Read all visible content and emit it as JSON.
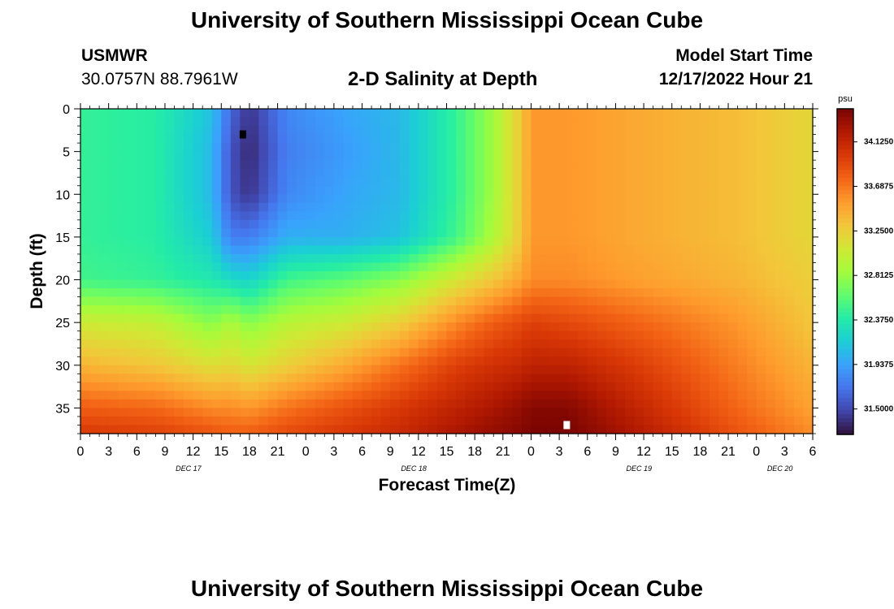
{
  "header": {
    "title": "University of Southern Mississippi Ocean Cube",
    "station": "USMWR",
    "coords": "30.0757N  88.7961W",
    "plot_title": "2-D Salinity at Depth",
    "model_label": "Model Start Time",
    "model_time": "12/17/2022 Hour 21"
  },
  "footer": {
    "title": "University of Southern Mississippi Ocean Cube"
  },
  "chart_data": {
    "type": "heatmap",
    "xlabel": "Forecast Time(Z)",
    "ylabel": "Depth (ft)",
    "x_ticks": [
      "0",
      "3",
      "6",
      "9",
      "12",
      "15",
      "18",
      "21",
      "0",
      "3",
      "6",
      "9",
      "12",
      "15",
      "18",
      "21",
      "0",
      "3",
      "6",
      "9",
      "12",
      "15",
      "18",
      "21",
      "0",
      "3",
      "6"
    ],
    "x_tick_hours": [
      0,
      3,
      6,
      9,
      12,
      15,
      18,
      21,
      24,
      27,
      30,
      33,
      36,
      39,
      42,
      45,
      48,
      51,
      54,
      57,
      60,
      63,
      66,
      69,
      72,
      75,
      78
    ],
    "xlim_hours": [
      0,
      78
    ],
    "date_labels": [
      {
        "label": "DEC 17",
        "hour": 11.5
      },
      {
        "label": "DEC 18",
        "hour": 35.5
      },
      {
        "label": "DEC 19",
        "hour": 59.5
      },
      {
        "label": "DEC 20",
        "hour": 74.5
      }
    ],
    "y_ticks": [
      0,
      5,
      10,
      15,
      20,
      25,
      30,
      35
    ],
    "ylim": [
      0,
      38
    ],
    "y_inverted": true,
    "colorbar": {
      "unit": "psu",
      "ticks": [
        "34.1250",
        "33.6875",
        "33.2500",
        "32.8125",
        "32.3750",
        "31.9375",
        "31.5000"
      ],
      "tick_values": [
        34.125,
        33.6875,
        33.25,
        32.8125,
        32.375,
        31.9375,
        31.5
      ],
      "range": [
        31.25,
        34.45
      ],
      "colors": [
        "#30123b",
        "#4145ab",
        "#4675ed",
        "#39a2fc",
        "#1bcfd4",
        "#24eca6",
        "#61fc6c",
        "#a4fc3b",
        "#d1e834",
        "#f3c63a",
        "#fe9b2d",
        "#f36315",
        "#d93806",
        "#b11901",
        "#7a0402"
      ]
    },
    "min_marker": {
      "hour": 17.3,
      "depth": 3
    },
    "max_marker": {
      "hour": 51.8,
      "depth": 37
    },
    "salinity_grid": {
      "depths": [
        0,
        5,
        10,
        15,
        20,
        25,
        30,
        35,
        38
      ],
      "hours": [
        0,
        8,
        14,
        16,
        18,
        22,
        28,
        34,
        40,
        44,
        47,
        48,
        52,
        60,
        70,
        78
      ],
      "values": [
        [
          32.45,
          32.4,
          32.1,
          31.65,
          31.4,
          31.8,
          31.95,
          32.05,
          32.45,
          32.85,
          33.3,
          33.55,
          33.55,
          33.45,
          33.35,
          33.2
        ],
        [
          32.45,
          32.4,
          32.05,
          31.55,
          31.35,
          31.75,
          31.9,
          32.05,
          32.45,
          32.85,
          33.3,
          33.55,
          33.55,
          33.45,
          33.35,
          33.2
        ],
        [
          32.45,
          32.4,
          32.05,
          31.55,
          31.4,
          31.8,
          31.95,
          32.05,
          32.45,
          32.85,
          33.3,
          33.55,
          33.55,
          33.45,
          33.35,
          33.2
        ],
        [
          32.45,
          32.4,
          32.15,
          31.75,
          31.75,
          32.0,
          32.0,
          32.1,
          32.5,
          32.9,
          33.3,
          33.55,
          33.55,
          33.45,
          33.35,
          33.2
        ],
        [
          32.5,
          32.45,
          32.35,
          32.25,
          32.2,
          32.5,
          32.6,
          32.75,
          33.1,
          33.3,
          33.5,
          33.6,
          33.6,
          33.5,
          33.4,
          33.25
        ],
        [
          33.05,
          33.0,
          32.75,
          32.9,
          32.75,
          32.95,
          33.05,
          33.25,
          33.6,
          33.8,
          33.9,
          33.95,
          33.9,
          33.75,
          33.55,
          33.3
        ],
        [
          33.4,
          33.3,
          33.15,
          33.2,
          33.1,
          33.25,
          33.45,
          33.7,
          33.95,
          34.05,
          34.1,
          34.15,
          34.15,
          33.95,
          33.65,
          33.4
        ],
        [
          33.8,
          33.75,
          33.6,
          33.6,
          33.55,
          33.7,
          33.85,
          34.0,
          34.15,
          34.25,
          34.35,
          34.4,
          34.4,
          34.1,
          33.75,
          33.5
        ],
        [
          34.0,
          33.95,
          33.85,
          33.8,
          33.8,
          33.9,
          34.0,
          34.1,
          34.25,
          34.35,
          34.4,
          34.45,
          34.45,
          34.2,
          33.85,
          33.6
        ]
      ]
    }
  }
}
